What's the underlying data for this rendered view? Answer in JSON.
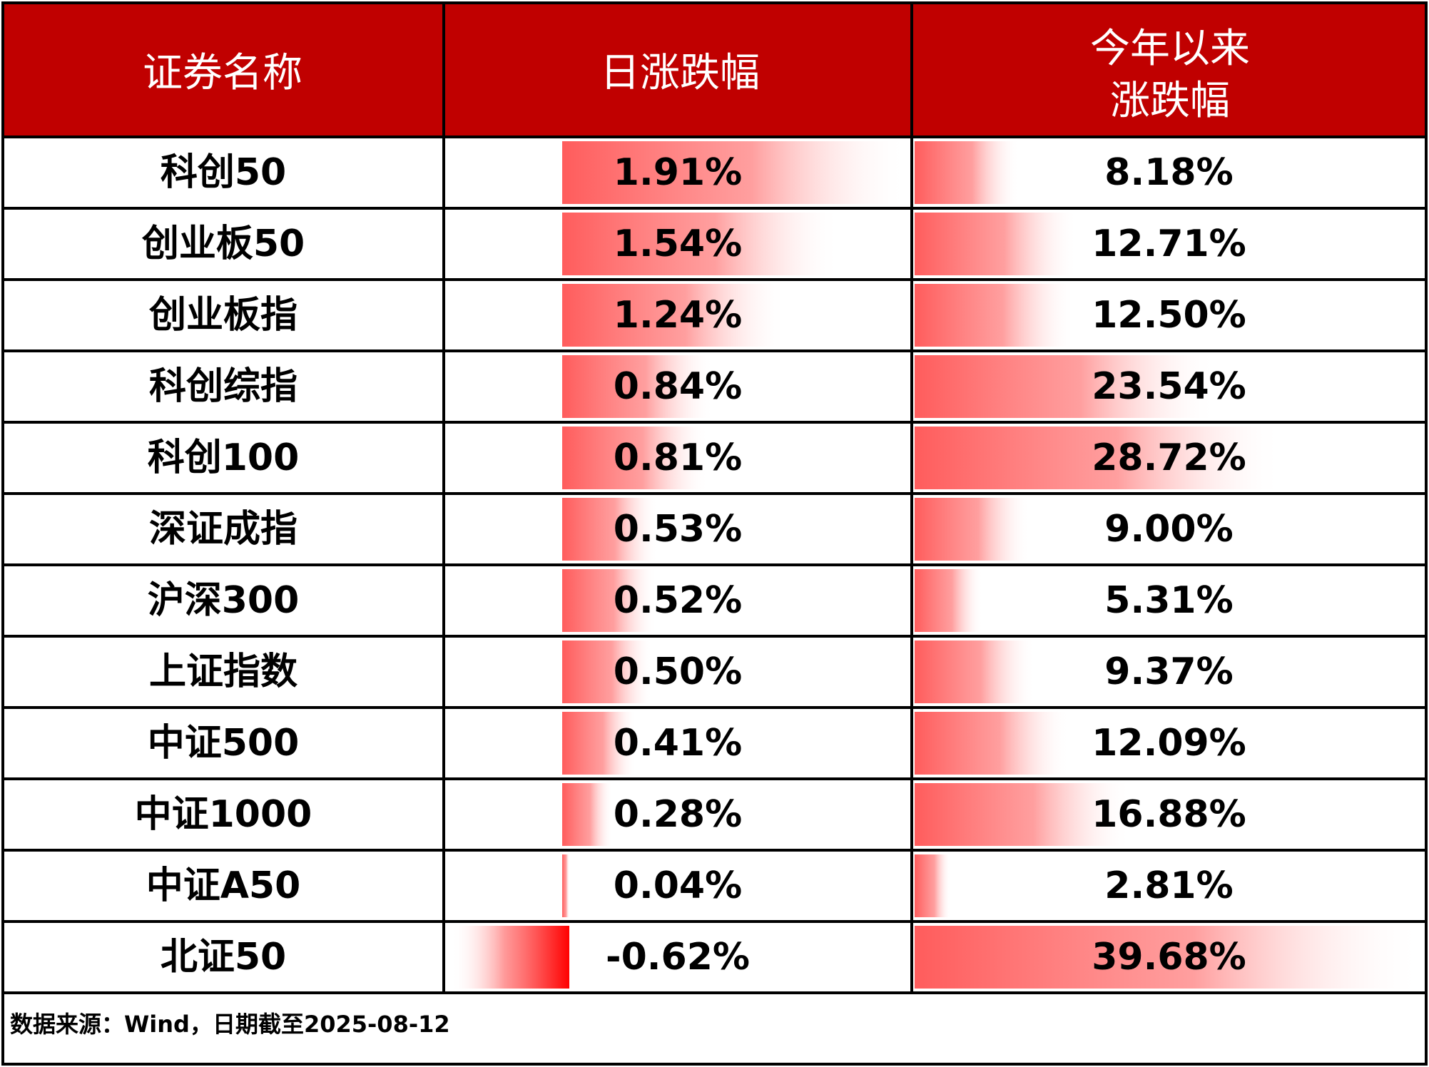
{
  "header": {
    "col_name": "证券名称",
    "col_daily": "日涨跌幅",
    "col_ytd_line1": "今年以来",
    "col_ytd_line2": "涨跌幅"
  },
  "colors": {
    "header_bg": "#C00000",
    "header_text": "#FFFFFF",
    "bar_positive": "#FF5C5C",
    "bar_negative": "#FF0000",
    "border": "#000000"
  },
  "footer": {
    "source": "数据来源：Wind，日期截至2025-08-12"
  },
  "chart_data": {
    "type": "table",
    "title": "",
    "columns": [
      "证券名称",
      "日涨跌幅",
      "今年以来涨跌幅"
    ],
    "daily_bar_range": [
      -0.62,
      1.91
    ],
    "ytd_bar_range": [
      0,
      39.68
    ],
    "rows": [
      {
        "name": "科创50",
        "daily": 1.91,
        "daily_label": "1.91%",
        "ytd": 8.18,
        "ytd_label": "8.18%"
      },
      {
        "name": "创业板50",
        "daily": 1.54,
        "daily_label": "1.54%",
        "ytd": 12.71,
        "ytd_label": "12.71%"
      },
      {
        "name": "创业板指",
        "daily": 1.24,
        "daily_label": "1.24%",
        "ytd": 12.5,
        "ytd_label": "12.50%"
      },
      {
        "name": "科创综指",
        "daily": 0.84,
        "daily_label": "0.84%",
        "ytd": 23.54,
        "ytd_label": "23.54%"
      },
      {
        "name": "科创100",
        "daily": 0.81,
        "daily_label": "0.81%",
        "ytd": 28.72,
        "ytd_label": "28.72%"
      },
      {
        "name": "深证成指",
        "daily": 0.53,
        "daily_label": "0.53%",
        "ytd": 9.0,
        "ytd_label": "9.00%"
      },
      {
        "name": "沪深300",
        "daily": 0.52,
        "daily_label": "0.52%",
        "ytd": 5.31,
        "ytd_label": "5.31%"
      },
      {
        "name": "上证指数",
        "daily": 0.5,
        "daily_label": "0.50%",
        "ytd": 9.37,
        "ytd_label": "9.37%"
      },
      {
        "name": "中证500",
        "daily": 0.41,
        "daily_label": "0.41%",
        "ytd": 12.09,
        "ytd_label": "12.09%"
      },
      {
        "name": "中证1000",
        "daily": 0.28,
        "daily_label": "0.28%",
        "ytd": 16.88,
        "ytd_label": "16.88%"
      },
      {
        "name": "中证A50",
        "daily": 0.04,
        "daily_label": "0.04%",
        "ytd": 2.81,
        "ytd_label": "2.81%"
      },
      {
        "name": "北证50",
        "daily": -0.62,
        "daily_label": "-0.62%",
        "ytd": 39.68,
        "ytd_label": "39.68%"
      }
    ]
  }
}
